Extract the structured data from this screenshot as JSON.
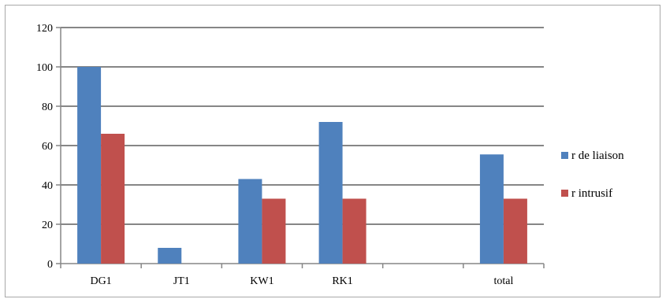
{
  "chart_data": {
    "type": "bar",
    "categories": [
      "DG1",
      "JT1",
      "KW1",
      "RK1",
      "",
      "total"
    ],
    "series": [
      {
        "name": "r de liaison",
        "values": [
          100,
          8,
          43,
          72,
          null,
          55.5
        ],
        "color": "#4f81bd"
      },
      {
        "name": "r intrusif",
        "values": [
          66,
          null,
          33,
          33,
          null,
          33
        ],
        "color": "#c0504d"
      }
    ],
    "ylim": [
      0,
      120
    ],
    "yticks": [
      0,
      20,
      40,
      60,
      80,
      100,
      120
    ],
    "grid": true,
    "legend_position": "right",
    "title": "",
    "xlabel": "",
    "ylabel": ""
  }
}
